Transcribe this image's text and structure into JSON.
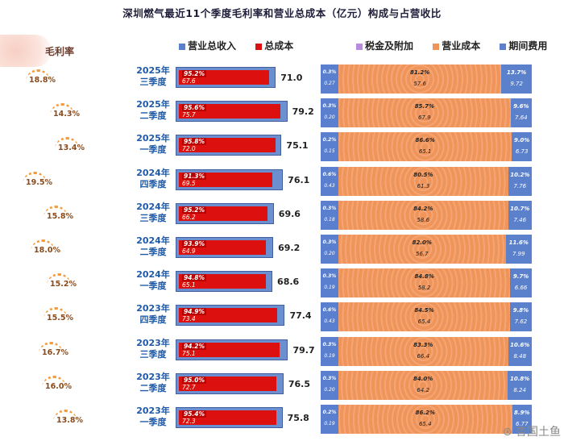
{
  "title": "深圳燃气最近11个季度毛利率和营业总成本（亿元）构成与占营收比",
  "gm_header": "毛利率",
  "legend_left": [
    {
      "label": "营业总收入",
      "color": "#5b80cc"
    },
    {
      "label": "总成本",
      "color": "#dd1010"
    }
  ],
  "legend_right": [
    {
      "label": "税金及附加",
      "color": "#b78be0"
    },
    {
      "label": "营业成本",
      "color": "#f0955a"
    },
    {
      "label": "期间费用",
      "color": "#5b80cc"
    }
  ],
  "watermark": "⊛ 杏国土鱼",
  "chart_data": {
    "type": "bar",
    "categories": [
      "2025年三季度",
      "2025年二季度",
      "2025年一季度",
      "2024年四季度",
      "2024年三季度",
      "2024年二季度",
      "2024年一季度",
      "2023年四季度",
      "2023年三季度",
      "2023年二季度",
      "2023年一季度"
    ],
    "rows": [
      {
        "year": "2025年",
        "q": "三季度",
        "gm": "18.8%",
        "rev": "71.0",
        "cost_pct": "95.2%",
        "cost": "67.6",
        "tax_pct": "0.3%",
        "tax": "0.27",
        "op_pct": "81.2%",
        "op": "57.6",
        "per_pct": "13.7%",
        "per": "9.72"
      },
      {
        "year": "2025年",
        "q": "二季度",
        "gm": "14.3%",
        "rev": "79.2",
        "cost_pct": "95.6%",
        "cost": "75.7",
        "tax_pct": "0.3%",
        "tax": "0.20",
        "op_pct": "85.7%",
        "op": "67.9",
        "per_pct": "9.6%",
        "per": "7.64"
      },
      {
        "year": "2025年",
        "q": "一季度",
        "gm": "13.4%",
        "rev": "75.1",
        "cost_pct": "95.8%",
        "cost": "72.0",
        "tax_pct": "0.2%",
        "tax": "0.15",
        "op_pct": "86.6%",
        "op": "65.1",
        "per_pct": "9.0%",
        "per": "6.73"
      },
      {
        "year": "2024年",
        "q": "四季度",
        "gm": "19.5%",
        "rev": "76.1",
        "cost_pct": "91.3%",
        "cost": "69.5",
        "tax_pct": "0.6%",
        "tax": "0.43",
        "op_pct": "80.5%",
        "op": "61.3",
        "per_pct": "10.2%",
        "per": "7.76"
      },
      {
        "year": "2024年",
        "q": "三季度",
        "gm": "15.8%",
        "rev": "69.6",
        "cost_pct": "95.2%",
        "cost": "66.2",
        "tax_pct": "0.3%",
        "tax": "0.18",
        "op_pct": "84.2%",
        "op": "58.6",
        "per_pct": "10.7%",
        "per": "7.46"
      },
      {
        "year": "2024年",
        "q": "二季度",
        "gm": "18.0%",
        "rev": "69.2",
        "cost_pct": "93.9%",
        "cost": "64.9",
        "tax_pct": "0.3%",
        "tax": "0.20",
        "op_pct": "82.0%",
        "op": "56.7",
        "per_pct": "11.6%",
        "per": "7.99"
      },
      {
        "year": "2024年",
        "q": "一季度",
        "gm": "15.2%",
        "rev": "68.6",
        "cost_pct": "94.8%",
        "cost": "65.1",
        "tax_pct": "0.3%",
        "tax": "0.19",
        "op_pct": "84.8%",
        "op": "58.2",
        "per_pct": "9.7%",
        "per": "6.66"
      },
      {
        "year": "2023年",
        "q": "四季度",
        "gm": "15.5%",
        "rev": "77.4",
        "cost_pct": "94.9%",
        "cost": "73.4",
        "tax_pct": "0.6%",
        "tax": "0.43",
        "op_pct": "84.5%",
        "op": "65.4",
        "per_pct": "9.8%",
        "per": "7.62"
      },
      {
        "year": "2023年",
        "q": "三季度",
        "gm": "16.7%",
        "rev": "79.7",
        "cost_pct": "94.2%",
        "cost": "75.1",
        "tax_pct": "0.3%",
        "tax": "0.19",
        "op_pct": "83.3%",
        "op": "66.4",
        "per_pct": "10.6%",
        "per": "8.48"
      },
      {
        "year": "2023年",
        "q": "二季度",
        "gm": "16.0%",
        "rev": "76.5",
        "cost_pct": "95.0%",
        "cost": "72.7",
        "tax_pct": "0.3%",
        "tax": "0.20",
        "op_pct": "84.0%",
        "op": "64.2",
        "per_pct": "10.8%",
        "per": "8.24"
      },
      {
        "year": "2023年",
        "q": "一季度",
        "gm": "13.8%",
        "rev": "75.8",
        "cost_pct": "95.4%",
        "cost": "72.3",
        "tax_pct": "0.2%",
        "tax": "0.19",
        "op_pct": "86.2%",
        "op": "65.4",
        "per_pct": "8.9%",
        "per": "6.77"
      }
    ]
  }
}
